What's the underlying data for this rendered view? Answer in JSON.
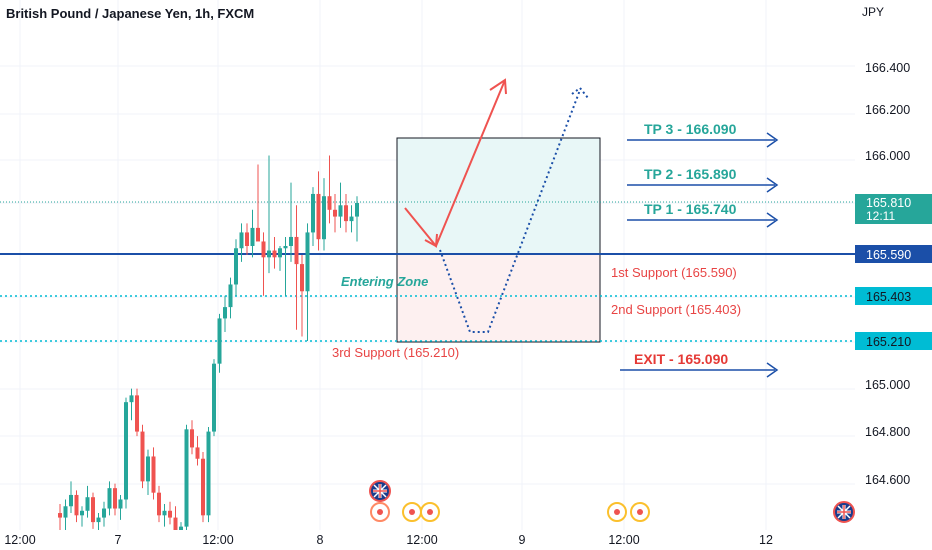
{
  "header": {
    "title": "British Pound / Japanese Yen, 1h, FXCM",
    "currency": "JPY"
  },
  "colors": {
    "bull": "#26a69a",
    "bear": "#ef5350",
    "blue": "#1b4fa8",
    "cyan": "#00bcd4",
    "tp_text": "#26a69a",
    "support_text": "#e84444",
    "exit_text": "#e53935"
  },
  "chart_data": {
    "type": "candlestick",
    "symbol": "GBPJPY",
    "timeframe": "1h",
    "y_ticks": [
      "166.400",
      "166.200",
      "166.000",
      "165.000",
      "164.800",
      "164.600"
    ],
    "x_ticks": [
      "12:00",
      "7",
      "12:00",
      "8",
      "12:00",
      "9",
      "12:00",
      "12"
    ],
    "ylim": [
      164.45,
      166.65
    ],
    "last_price": "165.810",
    "countdown": "12:11",
    "price_badges": [
      "165.590",
      "165.403",
      "165.210"
    ],
    "levels": [
      {
        "price": 165.59,
        "style": "solid"
      },
      {
        "price": 165.403,
        "style": "dotted"
      },
      {
        "price": 165.21,
        "style": "dotted"
      }
    ],
    "annotations": {
      "tp3": "TP 3 - 166.090",
      "tp2": "TP 2 - 165.890",
      "tp1": "TP 1 - 165.740",
      "exit": "EXIT - 165.090",
      "support1": "1st Support (165.590)",
      "support2": "2nd Support (165.403)",
      "support3": "3rd Support  (165.210)",
      "zone": "Entering Zone"
    },
    "zone": {
      "top": 166.09,
      "mid": 165.59,
      "bottom": 165.21
    },
    "candles": [
      [
        164.44,
        164.48,
        164.3,
        164.42
      ],
      [
        164.42,
        164.5,
        164.35,
        164.47
      ],
      [
        164.47,
        164.58,
        164.44,
        164.52
      ],
      [
        164.52,
        164.54,
        164.4,
        164.43
      ],
      [
        164.43,
        164.47,
        164.38,
        164.45
      ],
      [
        164.45,
        164.56,
        164.42,
        164.51
      ],
      [
        164.51,
        164.53,
        164.37,
        164.4
      ],
      [
        164.4,
        164.44,
        164.35,
        164.42
      ],
      [
        164.42,
        164.49,
        164.38,
        164.46
      ],
      [
        164.46,
        164.58,
        164.43,
        164.55
      ],
      [
        164.55,
        164.57,
        164.43,
        164.46
      ],
      [
        164.46,
        164.52,
        164.41,
        164.5
      ],
      [
        164.5,
        164.95,
        164.46,
        164.93
      ],
      [
        164.93,
        164.99,
        164.85,
        164.96
      ],
      [
        164.96,
        164.99,
        164.78,
        164.8
      ],
      [
        164.8,
        164.83,
        164.55,
        164.58
      ],
      [
        164.58,
        164.72,
        164.52,
        164.69
      ],
      [
        164.69,
        164.73,
        164.5,
        164.53
      ],
      [
        164.53,
        164.56,
        164.4,
        164.43
      ],
      [
        164.43,
        164.48,
        164.38,
        164.45
      ],
      [
        164.45,
        164.49,
        164.39,
        164.42
      ],
      [
        164.42,
        164.47,
        164.34,
        164.36
      ],
      [
        164.36,
        164.4,
        164.3,
        164.38
      ],
      [
        164.38,
        164.83,
        164.35,
        164.81
      ],
      [
        164.81,
        164.85,
        164.7,
        164.73
      ],
      [
        164.73,
        164.78,
        164.65,
        164.68
      ],
      [
        164.68,
        164.71,
        164.4,
        164.43
      ],
      [
        164.43,
        164.82,
        164.4,
        164.8
      ],
      [
        164.8,
        165.12,
        164.78,
        165.1
      ],
      [
        165.1,
        165.32,
        165.06,
        165.3
      ],
      [
        165.3,
        165.4,
        165.24,
        165.35
      ],
      [
        165.35,
        165.48,
        165.3,
        165.45
      ],
      [
        165.45,
        165.65,
        165.4,
        165.61
      ],
      [
        165.61,
        165.72,
        165.55,
        165.68
      ],
      [
        165.68,
        165.72,
        165.58,
        165.62
      ],
      [
        165.62,
        165.78,
        165.57,
        165.7
      ],
      [
        165.7,
        165.98,
        165.66,
        165.64
      ],
      [
        165.64,
        165.68,
        165.4,
        165.57
      ],
      [
        165.57,
        166.02,
        165.5,
        165.6
      ],
      [
        165.6,
        165.66,
        165.52,
        165.57
      ],
      [
        165.57,
        165.62,
        165.51,
        165.61
      ],
      [
        165.61,
        165.66,
        165.4,
        165.62
      ],
      [
        165.62,
        165.9,
        165.55,
        165.66
      ],
      [
        165.66,
        165.8,
        165.25,
        165.54
      ],
      [
        165.54,
        165.58,
        165.22,
        165.42
      ],
      [
        165.42,
        165.72,
        165.2,
        165.68
      ],
      [
        165.68,
        165.88,
        165.62,
        165.85
      ],
      [
        165.85,
        165.95,
        165.6,
        165.65
      ],
      [
        165.65,
        165.92,
        165.6,
        165.84
      ],
      [
        165.84,
        166.02,
        165.72,
        165.78
      ],
      [
        165.78,
        165.85,
        165.68,
        165.75
      ],
      [
        165.75,
        165.9,
        165.7,
        165.8
      ],
      [
        165.8,
        165.85,
        165.68,
        165.73
      ],
      [
        165.73,
        165.8,
        165.68,
        165.75
      ],
      [
        165.75,
        165.84,
        165.64,
        165.81
      ]
    ]
  }
}
